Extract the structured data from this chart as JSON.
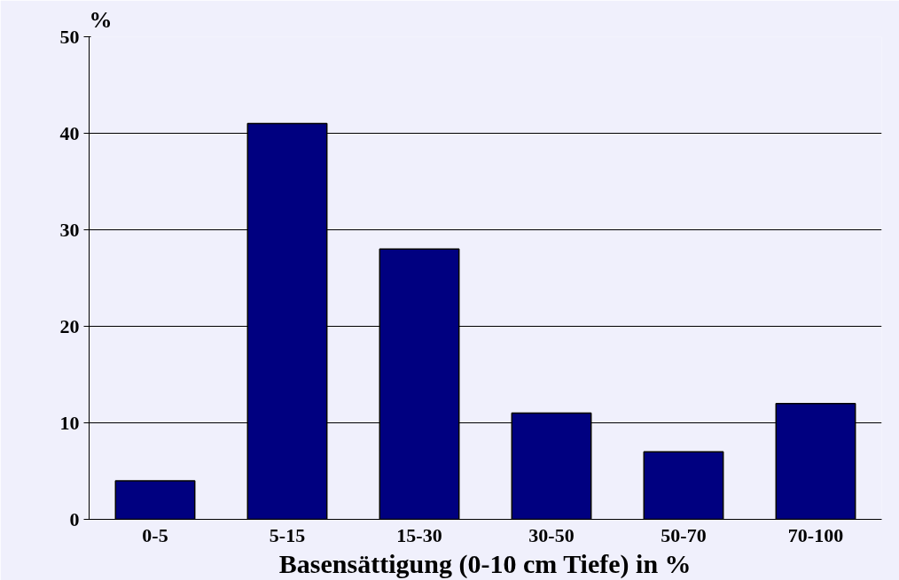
{
  "chart_data": {
    "type": "bar",
    "xlabel": "Basensättigung (0-10 cm Tiefe) in %",
    "ylabel": "%",
    "categories": [
      "0-5",
      "5-15",
      "15-30",
      "30-50",
      "50-70",
      "70-100"
    ],
    "values": [
      4,
      41,
      28,
      11,
      7,
      12
    ],
    "color": "#000080",
    "ylim": [
      0,
      50
    ],
    "yticks": [
      0,
      10,
      20,
      30,
      40,
      50
    ],
    "grid": "y"
  }
}
